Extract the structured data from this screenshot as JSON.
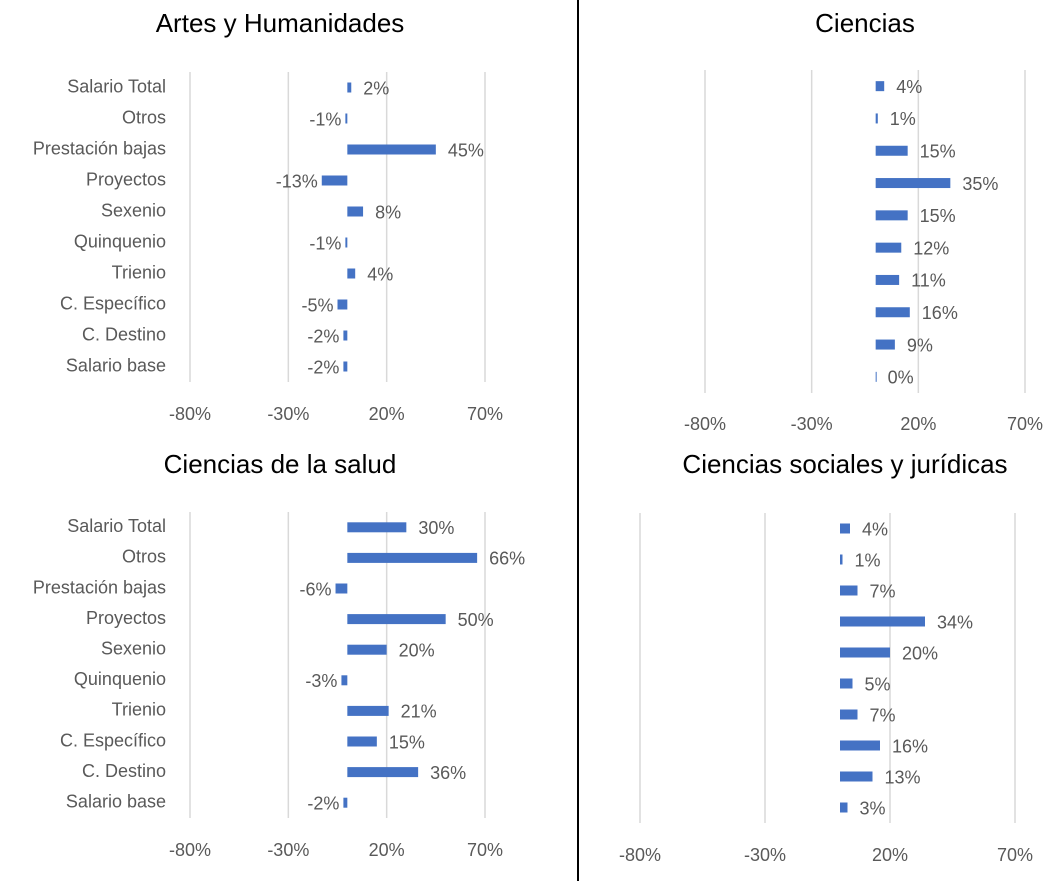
{
  "chart_data": [
    {
      "type": "bar",
      "orientation": "horizontal",
      "title": "Artes y Humanidades",
      "categories": [
        "Salario Total",
        "Otros",
        "Prestación bajas",
        "Proyectos",
        "Sexenio",
        "Quinquenio",
        "Trienio",
        "C. Específico",
        "C. Destino",
        "Salario base"
      ],
      "values": [
        2,
        -1,
        45,
        -13,
        8,
        -1,
        4,
        -5,
        -2,
        -2
      ],
      "value_labels": [
        "2%",
        "-1%",
        "45%",
        "-13%",
        "8%",
        "-1%",
        "4%",
        "-5%",
        "-2%",
        "-2%"
      ],
      "color": "#4472c4",
      "xlim": [
        -80,
        70
      ],
      "xticks": [
        {
          "value": -80,
          "label": "-80%"
        },
        {
          "value": -30,
          "label": "-30%"
        },
        {
          "value": 20,
          "label": "20%"
        },
        {
          "value": 70,
          "label": "70%"
        }
      ],
      "grid": true
    },
    {
      "type": "bar",
      "orientation": "horizontal",
      "title": "Ciencias",
      "categories": [
        null,
        null,
        null,
        null,
        null,
        null,
        null,
        null,
        null,
        null
      ],
      "values": [
        4,
        1,
        15,
        35,
        15,
        12,
        11,
        16,
        9,
        0
      ],
      "value_labels": [
        "4%",
        "1%",
        "15%",
        "35%",
        "15%",
        "12%",
        "11%",
        "16%",
        "9%",
        "0%"
      ],
      "color": "#4472c4",
      "xlim": [
        -80,
        70
      ],
      "xticks": [
        {
          "value": -80,
          "label": "-80%"
        },
        {
          "value": -30,
          "label": "-30%"
        },
        {
          "value": 20,
          "label": "20%"
        },
        {
          "value": 70,
          "label": "70%"
        }
      ],
      "grid": true
    },
    {
      "type": "bar",
      "orientation": "horizontal",
      "title": "Ciencias de la salud",
      "categories": [
        "Salario Total",
        "Otros",
        "Prestación bajas",
        "Proyectos",
        "Sexenio",
        "Quinquenio",
        "Trienio",
        "C. Específico",
        "C. Destino",
        "Salario base"
      ],
      "values": [
        30,
        66,
        -6,
        50,
        20,
        -3,
        21,
        15,
        36,
        -2
      ],
      "value_labels": [
        "30%",
        "66%",
        "-6%",
        "50%",
        "20%",
        "-3%",
        "21%",
        "15%",
        "36%",
        "-2%"
      ],
      "color": "#4472c4",
      "xlim": [
        -80,
        70
      ],
      "xticks": [
        {
          "value": -80,
          "label": "-80%"
        },
        {
          "value": -30,
          "label": "-30%"
        },
        {
          "value": 20,
          "label": "20%"
        },
        {
          "value": 70,
          "label": "70%"
        }
      ],
      "grid": true
    },
    {
      "type": "bar",
      "orientation": "horizontal",
      "title": "Ciencias sociales y jurídicas",
      "categories": [
        null,
        null,
        null,
        null,
        null,
        null,
        null,
        null,
        null,
        null
      ],
      "values": [
        4,
        1,
        7,
        34,
        20,
        5,
        7,
        16,
        13,
        3
      ],
      "value_labels": [
        "4%",
        "1%",
        "7%",
        "34%",
        "20%",
        "5%",
        "7%",
        "16%",
        "13%",
        "3%"
      ],
      "color": "#4472c4",
      "xlim": [
        -80,
        70
      ],
      "xticks": [
        {
          "value": -80,
          "label": "-80%"
        },
        {
          "value": -30,
          "label": "-30%"
        },
        {
          "value": 20,
          "label": "20%"
        },
        {
          "value": 70,
          "label": "70%"
        }
      ],
      "grid": true
    }
  ]
}
